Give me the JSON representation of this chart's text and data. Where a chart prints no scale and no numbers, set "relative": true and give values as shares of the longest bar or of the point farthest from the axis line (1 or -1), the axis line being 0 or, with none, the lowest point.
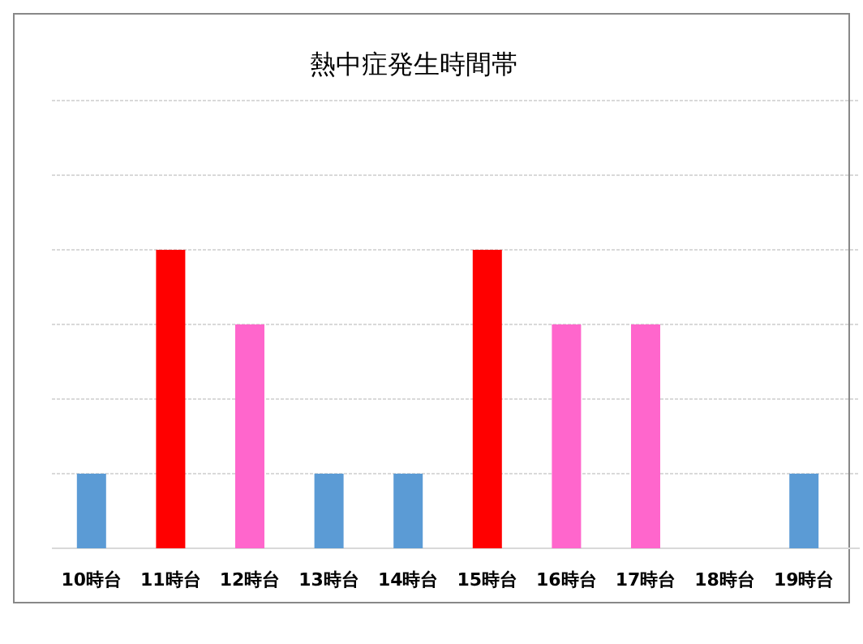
{
  "chart_data": {
    "type": "bar",
    "title": "熱中症発生時間帯",
    "categories": [
      "10時台",
      "11時台",
      "12時台",
      "13時台",
      "14時台",
      "15時台",
      "16時台",
      "17時台",
      "18時台",
      "19時台"
    ],
    "values": [
      0.25,
      1,
      0.75,
      0.25,
      0.25,
      1,
      0.75,
      0.75,
      0,
      0.25
    ],
    "colors": [
      "#5b9bd5",
      "#ff0000",
      "#ff66cc",
      "#5b9bd5",
      "#5b9bd5",
      "#ff0000",
      "#ff66cc",
      "#ff66cc",
      "#5b9bd5",
      "#5b9bd5"
    ],
    "relative": true,
    "grid": "y"
  }
}
